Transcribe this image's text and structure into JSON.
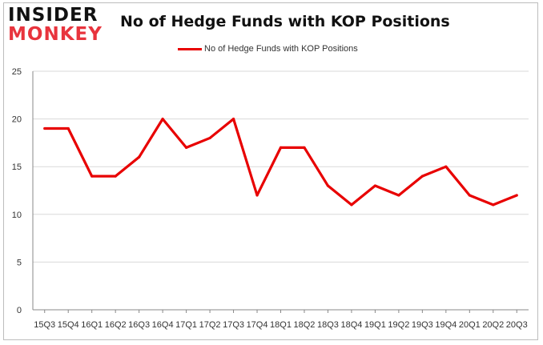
{
  "logo": {
    "line1": "INSIDER",
    "line2": "MONKEY"
  },
  "colors": {
    "series": "#e80000",
    "grid": "#d9d9d9",
    "logo_red": "#e8343d"
  },
  "chart_data": {
    "type": "line",
    "title": "No of Hedge Funds with KOP Positions",
    "xlabel": "",
    "ylabel": "",
    "ylim": [
      0,
      25
    ],
    "yticks": [
      0,
      5,
      10,
      15,
      20,
      25
    ],
    "grid": true,
    "legend_position": "top-center",
    "categories": [
      "15Q3",
      "15Q4",
      "16Q1",
      "16Q2",
      "16Q3",
      "16Q4",
      "17Q1",
      "17Q2",
      "17Q3",
      "17Q4",
      "18Q1",
      "18Q2",
      "18Q3",
      "18Q4",
      "19Q1",
      "19Q2",
      "19Q3",
      "19Q4",
      "20Q1",
      "20Q2",
      "20Q3"
    ],
    "series": [
      {
        "name": "No of Hedge Funds with KOP Positions",
        "values": [
          19,
          19,
          14,
          14,
          16,
          20,
          17,
          18,
          20,
          12,
          17,
          17,
          13,
          11,
          13,
          12,
          14,
          15,
          12,
          11,
          12
        ]
      }
    ]
  }
}
